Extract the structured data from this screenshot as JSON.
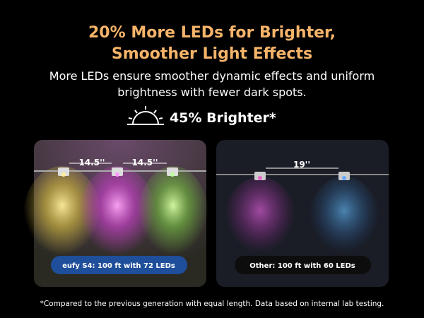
{
  "header": {
    "title_lines": [
      "20% More LEDs for Brighter,",
      "Smoother Light Effects"
    ],
    "subtitle": "More LEDs ensure smoother dynamic effects and uniform brightness with fewer dark spots.",
    "highlight": "45% Brighter*"
  },
  "panels": [
    {
      "spacings": [
        "14.5''",
        "14.5''"
      ],
      "caption": "eufy S4: 100 ft with 72 LEDs"
    },
    {
      "spacings": [
        "19''"
      ],
      "caption": "Other: 100 ft with 60 LEDs"
    }
  ],
  "footnote": "*Compared to the previous generation with equal length. Data based on internal lab testing."
}
